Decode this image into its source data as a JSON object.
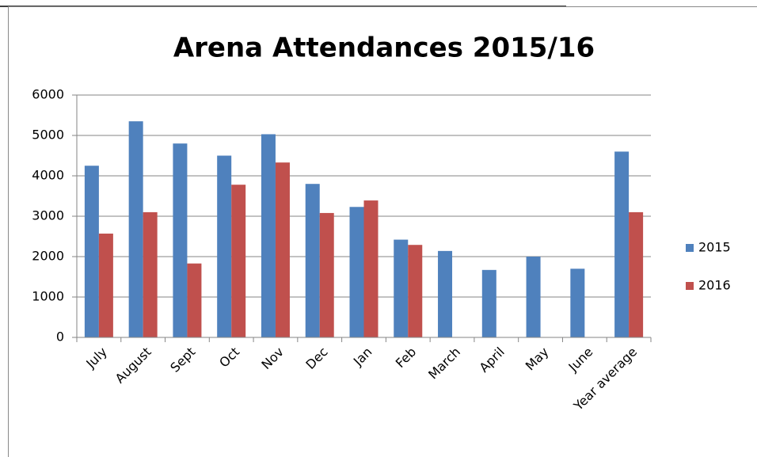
{
  "chart_data": {
    "type": "bar",
    "title": "Arena Attendances 2015/16",
    "categories": [
      "July",
      "August",
      "Sept",
      "Oct",
      "Nov",
      "Dec",
      "Jan",
      "Feb",
      "March",
      "April",
      "May",
      "June",
      "Year average"
    ],
    "series": [
      {
        "name": "2015",
        "color": "#4f81bd",
        "values": [
          4250,
          5350,
          4800,
          4500,
          5030,
          3800,
          3230,
          2420,
          2140,
          1670,
          2000,
          1700,
          4600
        ]
      },
      {
        "name": "2016",
        "color": "#c0504d",
        "values": [
          2570,
          3100,
          1830,
          3780,
          4330,
          3080,
          3390,
          2290,
          null,
          null,
          null,
          null,
          3100
        ]
      }
    ],
    "ylim": [
      0,
      6000
    ],
    "yticks": [
      0,
      1000,
      2000,
      3000,
      4000,
      5000,
      6000
    ],
    "grid": true,
    "legend": "right"
  }
}
